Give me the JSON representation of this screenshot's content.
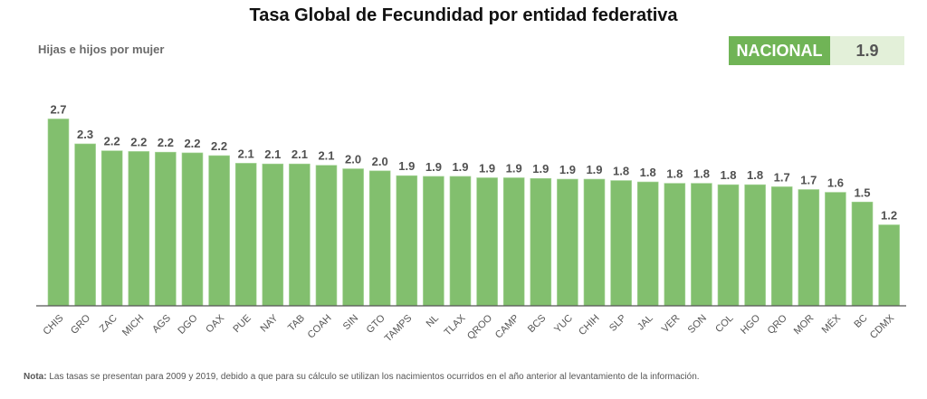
{
  "chart_data": {
    "type": "bar",
    "title": "Tasa Global de Fecundidad por entidad federativa",
    "ylabel": "Hijas e hijos por mujer",
    "xlabel": "",
    "ylim": [
      0,
      2.8
    ],
    "grid": false,
    "categories": [
      "CHIS",
      "GRO",
      "ZAC",
      "MICH",
      "AGS",
      "DGO",
      "OAX",
      "PUE",
      "NAY",
      "TAB",
      "COAH",
      "SIN",
      "GTO",
      "TAMPS",
      "NL",
      "TLAX",
      "QROO",
      "CAMP",
      "BCS",
      "YUC",
      "CHIH",
      "SLP",
      "JAL",
      "VER",
      "SON",
      "COL",
      "HGO",
      "QRO",
      "MOR",
      "MÉX",
      "BC",
      "CDMX"
    ],
    "values": [
      2.7,
      2.3,
      2.2,
      2.2,
      2.2,
      2.2,
      2.2,
      2.1,
      2.1,
      2.1,
      2.1,
      2.0,
      2.0,
      1.9,
      1.9,
      1.9,
      1.9,
      1.9,
      1.9,
      1.9,
      1.9,
      1.8,
      1.8,
      1.8,
      1.8,
      1.8,
      1.8,
      1.7,
      1.7,
      1.6,
      1.5,
      1.2
    ],
    "plot_values": [
      2.7,
      2.34,
      2.24,
      2.23,
      2.22,
      2.21,
      2.17,
      2.06,
      2.05,
      2.05,
      2.03,
      1.98,
      1.95,
      1.88,
      1.87,
      1.87,
      1.85,
      1.85,
      1.84,
      1.83,
      1.83,
      1.81,
      1.79,
      1.77,
      1.77,
      1.75,
      1.75,
      1.72,
      1.68,
      1.64,
      1.5,
      1.17
    ],
    "labels": [
      "2.7",
      "2.3",
      "2.2",
      "2.2",
      "2.2",
      "2.2",
      "2.2",
      "2.1",
      "2.1",
      "2.1",
      "2.1",
      "2.0",
      "2.0",
      "1.9",
      "1.9",
      "1.9",
      "1.9",
      "1.9",
      "1.9",
      "1.9",
      "1.9",
      "1.8",
      "1.8",
      "1.8",
      "1.8",
      "1.8",
      "1.8",
      "1.7",
      "1.7",
      "1.6",
      "1.5",
      "1.2"
    ],
    "bar_color": "#82bf6e",
    "national": {
      "label": "NACIONAL",
      "value": "1.9"
    }
  },
  "note": {
    "prefix": "Nota:",
    "text": " Las tasas se presentan para 2009 y 2019, debido a que para su cálculo se utilizan los nacimientos ocurridos en el año anterior al levantamiento de la información."
  },
  "colors": {
    "accent": "#70b456",
    "accent_light": "#e3f0d9",
    "bar": "#82bf6e",
    "axis": "#555555"
  }
}
